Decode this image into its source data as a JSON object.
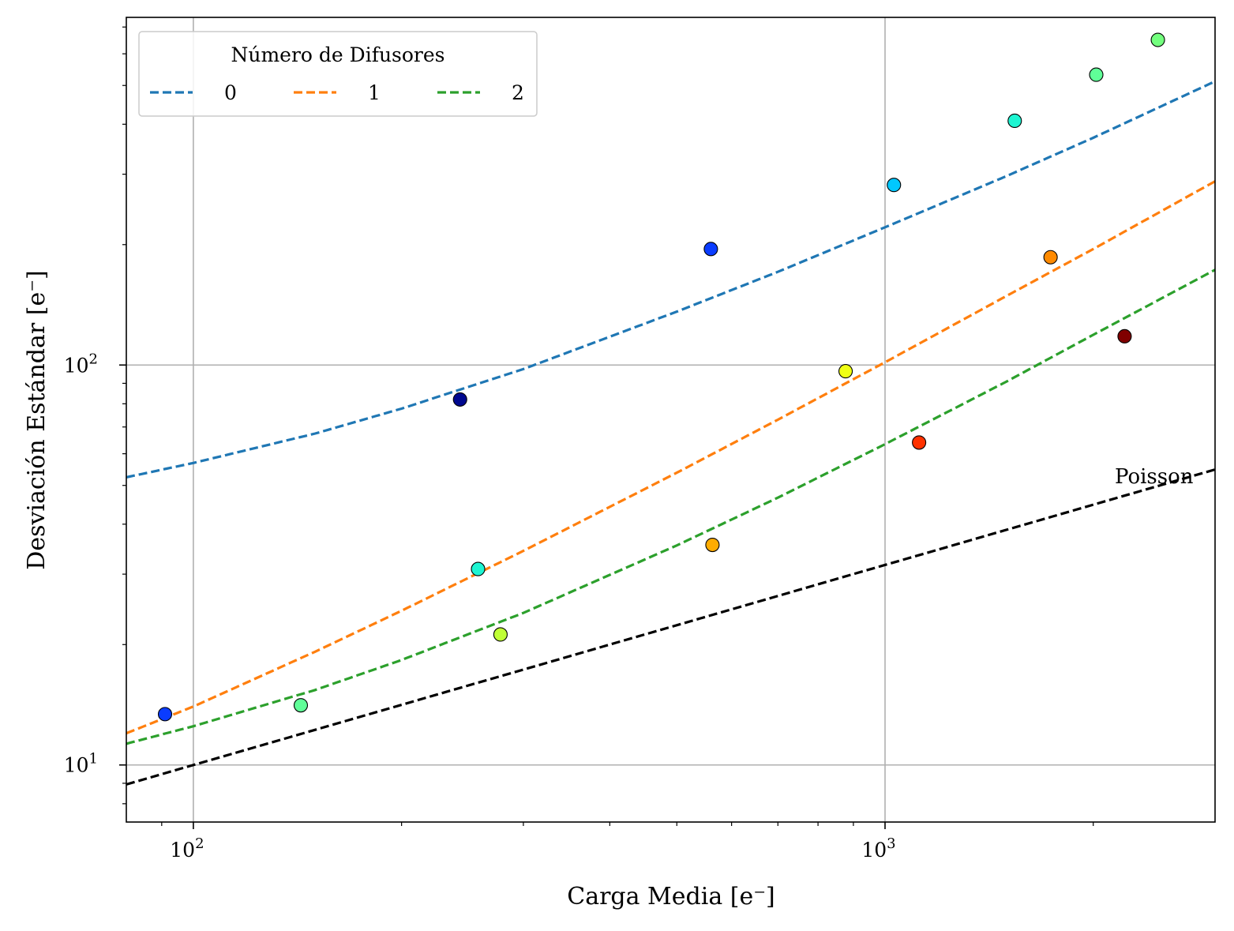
{
  "chart_data": {
    "type": "scatter",
    "xscale": "log",
    "yscale": "log",
    "xlim": [
      80,
      3000
    ],
    "ylim": [
      7.2,
      740
    ],
    "xlabel": "Carga Media [e⁻]",
    "ylabel": "Desviación Estándar [e⁻]",
    "x_ticks": [
      {
        "value": 100,
        "base": "10",
        "exp": "2"
      },
      {
        "value": 1000,
        "base": "10",
        "exp": "3"
      }
    ],
    "y_ticks": [
      {
        "value": 10,
        "base": "10",
        "exp": "1"
      },
      {
        "value": 100,
        "base": "10",
        "exp": "2"
      }
    ],
    "grid": true,
    "legend": {
      "title": "Número de Difusores",
      "placement": "top-left",
      "entries": [
        {
          "label": "0",
          "color": "#1f77b4"
        },
        {
          "label": "1",
          "color": "#ff7f0e"
        },
        {
          "label": "2",
          "color": "#2ca02c"
        }
      ]
    },
    "fits": [
      {
        "name": "0",
        "color": "#1f77b4",
        "x": [
          80,
          100,
          150,
          200,
          300,
          500,
          700,
          1000,
          1500,
          2000,
          3000
        ],
        "y": [
          52.4,
          56.9,
          67.4,
          77.8,
          97.7,
          136,
          171,
          221,
          297,
          370,
          512
        ]
      },
      {
        "name": "1",
        "color": "#ff7f0e",
        "x": [
          80,
          100,
          150,
          200,
          300,
          500,
          700,
          1000,
          1500,
          2000,
          3000
        ],
        "y": [
          12.0,
          14.0,
          19.2,
          24.3,
          34.3,
          53.8,
          73.0,
          101.6,
          149,
          195,
          288
        ]
      },
      {
        "name": "2",
        "color": "#2ca02c",
        "x": [
          80,
          100,
          150,
          200,
          300,
          500,
          700,
          1000,
          1500,
          2000,
          3000
        ],
        "y": [
          11.3,
          12.5,
          15.4,
          18.3,
          24.0,
          35.4,
          46.6,
          63.4,
          91.0,
          119,
          173
        ]
      }
    ],
    "poisson": {
      "label": "Poisson",
      "color": "#000000",
      "x": [
        80,
        3000
      ],
      "y": [
        8.94,
        54.8
      ]
    },
    "points": [
      {
        "series": "0",
        "x": 243,
        "y": 82,
        "color": "#00088f"
      },
      {
        "series": "0",
        "x": 560,
        "y": 195,
        "color": "#0a3cff"
      },
      {
        "series": "0",
        "x": 1030,
        "y": 282,
        "color": "#00c8ff"
      },
      {
        "series": "0",
        "x": 1540,
        "y": 408,
        "color": "#1ef5d2"
      },
      {
        "series": "0",
        "x": 2020,
        "y": 532,
        "color": "#60ff98"
      },
      {
        "series": "0",
        "x": 2480,
        "y": 650,
        "color": "#73ff7e"
      },
      {
        "series": "1",
        "x": 91,
        "y": 13.4,
        "color": "#0a3cff"
      },
      {
        "series": "1",
        "x": 258,
        "y": 30.9,
        "color": "#1ef5d2"
      },
      {
        "series": "1",
        "x": 877,
        "y": 96.5,
        "color": "#f0ff14"
      },
      {
        "series": "1",
        "x": 1735,
        "y": 186,
        "color": "#ff8a00"
      },
      {
        "series": "2",
        "x": 143,
        "y": 14.1,
        "color": "#60ff98"
      },
      {
        "series": "2",
        "x": 278,
        "y": 21.2,
        "color": "#c0ff36"
      },
      {
        "series": "2",
        "x": 563,
        "y": 35.5,
        "color": "#ffac00"
      },
      {
        "series": "2",
        "x": 1120,
        "y": 64.0,
        "color": "#ff3200"
      },
      {
        "series": "2",
        "x": 2220,
        "y": 118,
        "color": "#800000"
      }
    ]
  }
}
